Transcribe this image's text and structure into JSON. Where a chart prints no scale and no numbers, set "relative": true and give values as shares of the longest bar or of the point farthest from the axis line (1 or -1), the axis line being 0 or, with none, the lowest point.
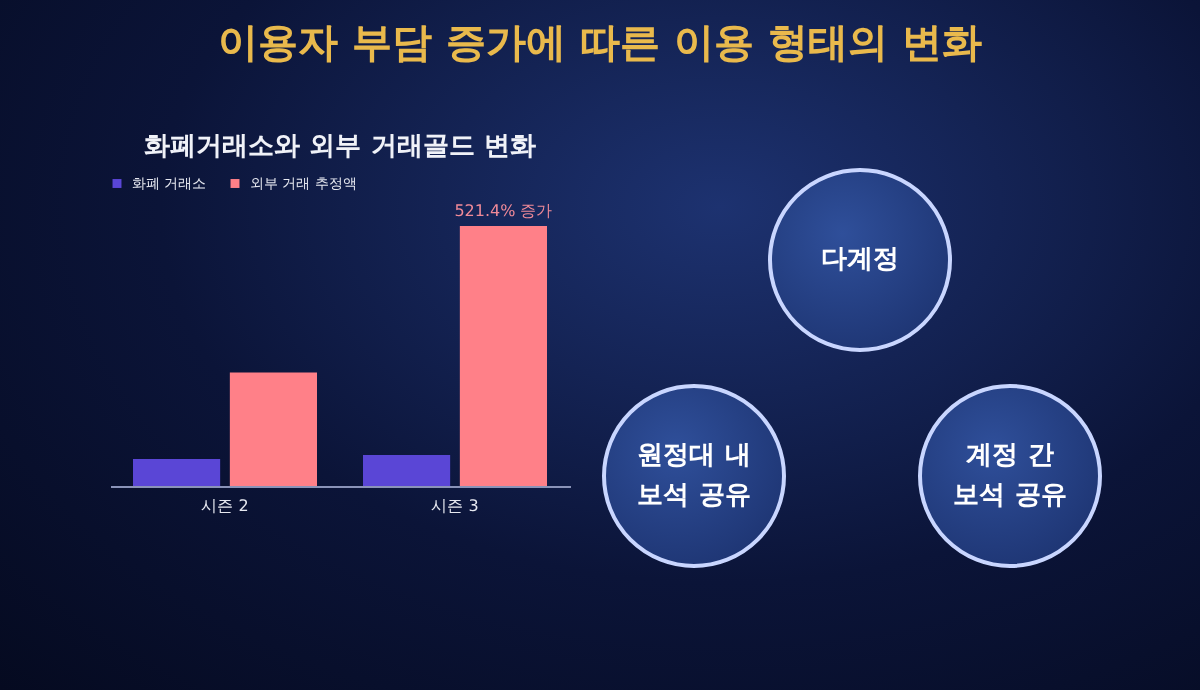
{
  "chart_data": {
    "type": "bar",
    "title": "이용자 부담 증가에 따른 이용 형태의 변화",
    "subtitle": "화폐거래소와 외부 거래골드 변화",
    "categories": [
      "시즌 2",
      "시즌 3"
    ],
    "relative": true,
    "legend": "top",
    "series": [
      {
        "name": "화폐 거래소",
        "color": "#5a46d6",
        "values": [
          0.104,
          0.119
        ]
      },
      {
        "name": "외부 거래 추정액",
        "color": "#ff8088",
        "values": [
          0.437,
          1
        ]
      }
    ],
    "annotations": [
      "다계정",
      "원정대 내\n보석 공유",
      "계정 간\n보석 공유",
      {
        "text": "521.4% 증가",
        "x": "시즌 3",
        "y": 1
      }
    ]
  }
}
